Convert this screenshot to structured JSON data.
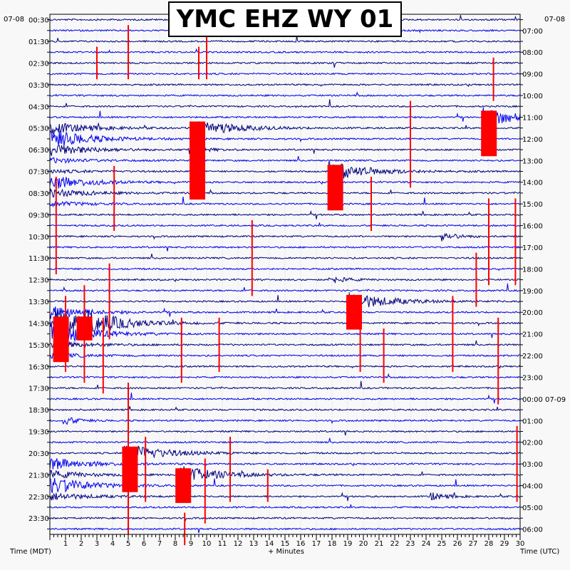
{
  "chart_data": {
    "type": "line",
    "title": "YMC EHZ WY 01",
    "xlabel": "+ Minutes",
    "left_axis_caption": "Time (MDT)",
    "right_axis_caption": "Time (UTC)",
    "left_date": "07-08",
    "right_date": "07-08",
    "x_ticks": [
      "1",
      "2",
      "3",
      "4",
      "5",
      "6",
      "7",
      "8",
      "9",
      "10",
      "11",
      "12",
      "13",
      "14",
      "15",
      "16",
      "17",
      "18",
      "19",
      "20",
      "21",
      "22",
      "23",
      "24",
      "25",
      "26",
      "27",
      "28",
      "29",
      "30"
    ],
    "xlim": [
      0,
      30
    ],
    "rows_per_hour": 2,
    "left_labels": [
      "00:30",
      "01:30",
      "02:30",
      "03:30",
      "04:30",
      "05:30",
      "06:30",
      "07:30",
      "08:30",
      "09:30",
      "10:30",
      "11:30",
      "12:30",
      "13:30",
      "14:30",
      "15:30",
      "16:30",
      "17:30",
      "18:30",
      "19:30",
      "20:30",
      "21:30",
      "22:30",
      "23:30"
    ],
    "right_labels": [
      "07:00",
      "08:00",
      "09:00",
      "10:00",
      "11:00",
      "12:00",
      "13:00",
      "14:00",
      "15:00",
      "16:00",
      "17:00",
      "18:00",
      "19:00",
      "20:00",
      "21:00",
      "22:00",
      "23:00",
      "00:00 07-09",
      "01:00",
      "02:00",
      "03:00",
      "04:00",
      "05:00",
      "06:00"
    ],
    "trace_colors": [
      "#000080",
      "#0000ee"
    ],
    "clip_color": "#ff0000",
    "events": [
      {
        "row": 10,
        "minute": 9.0,
        "rows": 7,
        "kind": "large"
      },
      {
        "row": 9,
        "minute": 27.6,
        "rows": 4,
        "kind": "large"
      },
      {
        "row": 14,
        "minute": 17.8,
        "rows": 4,
        "kind": "large"
      },
      {
        "row": 28,
        "minute": 0.3,
        "rows": 4,
        "kind": "large"
      },
      {
        "row": 28,
        "minute": 1.8,
        "rows": 2,
        "kind": "large"
      },
      {
        "row": 26,
        "minute": 19.0,
        "rows": 3,
        "kind": "large"
      },
      {
        "row": 40,
        "minute": 4.7,
        "rows": 4,
        "kind": "large"
      },
      {
        "row": 42,
        "minute": 8.1,
        "rows": 3,
        "kind": "large"
      },
      {
        "row": 12,
        "minute": 8.8,
        "rows": 1,
        "kind": "small"
      },
      {
        "row": 37,
        "minute": 0.8,
        "rows": 1,
        "kind": "small"
      },
      {
        "row": 44,
        "minute": 24.2,
        "rows": 1,
        "kind": "small"
      },
      {
        "row": 20,
        "minute": 25.0,
        "rows": 1,
        "kind": "small"
      },
      {
        "row": 24,
        "minute": 17.8,
        "rows": 1,
        "kind": "small"
      }
    ],
    "spikes": [
      {
        "minute": 5.0,
        "row_start": 1,
        "row_end": 5
      },
      {
        "minute": 5.0,
        "row_start": 34,
        "row_end": 47
      },
      {
        "minute": 9.5,
        "row_start": 3,
        "row_end": 5
      },
      {
        "minute": 10.0,
        "row_start": 2,
        "row_end": 5
      },
      {
        "minute": 3.0,
        "row_start": 3,
        "row_end": 5
      },
      {
        "minute": 0.4,
        "row_start": 15,
        "row_end": 23
      },
      {
        "minute": 4.1,
        "row_start": 14,
        "row_end": 19
      },
      {
        "minute": 3.8,
        "row_start": 23,
        "row_end": 29
      },
      {
        "minute": 3.4,
        "row_start": 28,
        "row_end": 34
      },
      {
        "minute": 1.0,
        "row_start": 26,
        "row_end": 32
      },
      {
        "minute": 2.2,
        "row_start": 25,
        "row_end": 33
      },
      {
        "minute": 12.9,
        "row_start": 19,
        "row_end": 25
      },
      {
        "minute": 23.0,
        "row_start": 8,
        "row_end": 15
      },
      {
        "minute": 28.3,
        "row_start": 4,
        "row_end": 7
      },
      {
        "minute": 20.5,
        "row_start": 15,
        "row_end": 19
      },
      {
        "minute": 28.0,
        "row_start": 17,
        "row_end": 24
      },
      {
        "minute": 27.2,
        "row_start": 22,
        "row_end": 26
      },
      {
        "minute": 8.4,
        "row_start": 28,
        "row_end": 33
      },
      {
        "minute": 10.8,
        "row_start": 28,
        "row_end": 32
      },
      {
        "minute": 21.3,
        "row_start": 29,
        "row_end": 33
      },
      {
        "minute": 25.7,
        "row_start": 26,
        "row_end": 32
      },
      {
        "minute": 29.7,
        "row_start": 17,
        "row_end": 24
      },
      {
        "minute": 28.6,
        "row_start": 28,
        "row_end": 35
      },
      {
        "minute": 6.1,
        "row_start": 39,
        "row_end": 44
      },
      {
        "minute": 9.9,
        "row_start": 41,
        "row_end": 46
      },
      {
        "minute": 11.5,
        "row_start": 39,
        "row_end": 44
      },
      {
        "minute": 13.9,
        "row_start": 42,
        "row_end": 44
      },
      {
        "minute": 29.8,
        "row_start": 38,
        "row_end": 44
      },
      {
        "minute": 8.6,
        "row_start": 46,
        "row_end": 48
      },
      {
        "minute": 19.8,
        "row_start": 28,
        "row_end": 32
      }
    ]
  }
}
